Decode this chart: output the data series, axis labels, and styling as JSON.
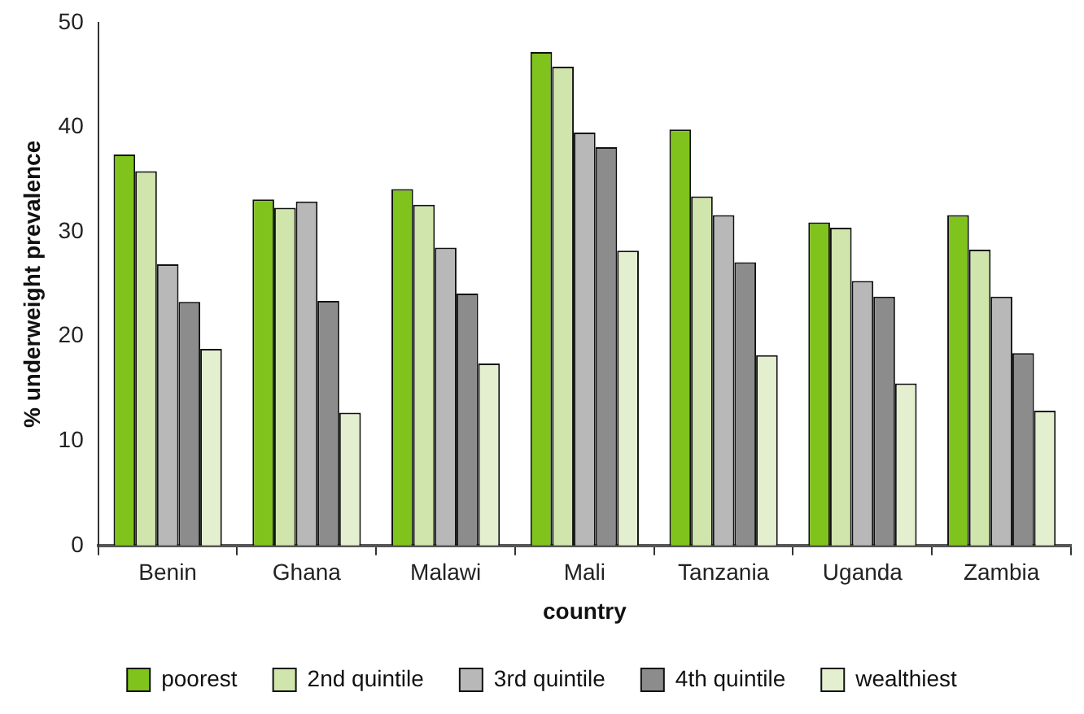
{
  "chart_data": {
    "type": "bar",
    "xlabel": "country",
    "ylabel": "% underweight prevalence",
    "categories": [
      "Benin",
      "Ghana",
      "Malawi",
      "Mali",
      "Tanzania",
      "Uganda",
      "Zambia"
    ],
    "series": [
      {
        "name": "poorest",
        "color": "#7fc31c",
        "values": [
          37.4,
          33.1,
          34.1,
          47.2,
          39.8,
          30.9,
          31.6
        ]
      },
      {
        "name": "2nd quintile",
        "color": "#cfe5ac",
        "values": [
          35.8,
          32.3,
          32.6,
          45.8,
          33.4,
          30.4,
          28.3
        ]
      },
      {
        "name": "3rd quintile",
        "color": "#b8b8b8",
        "values": [
          26.9,
          32.9,
          28.5,
          39.5,
          31.6,
          25.3,
          23.8
        ]
      },
      {
        "name": "4th quintile",
        "color": "#8c8c8c",
        "values": [
          23.3,
          23.4,
          24.1,
          38.1,
          27.1,
          23.8,
          18.4
        ]
      },
      {
        "name": "wealthiest",
        "color": "#e3efcf",
        "values": [
          18.8,
          12.7,
          17.4,
          28.2,
          18.2,
          15.5,
          12.9
        ]
      }
    ],
    "ylim": [
      0,
      50
    ],
    "yticks": [
      0,
      10,
      20,
      30,
      40,
      50
    ],
    "grid": false,
    "legend": "bottom"
  }
}
